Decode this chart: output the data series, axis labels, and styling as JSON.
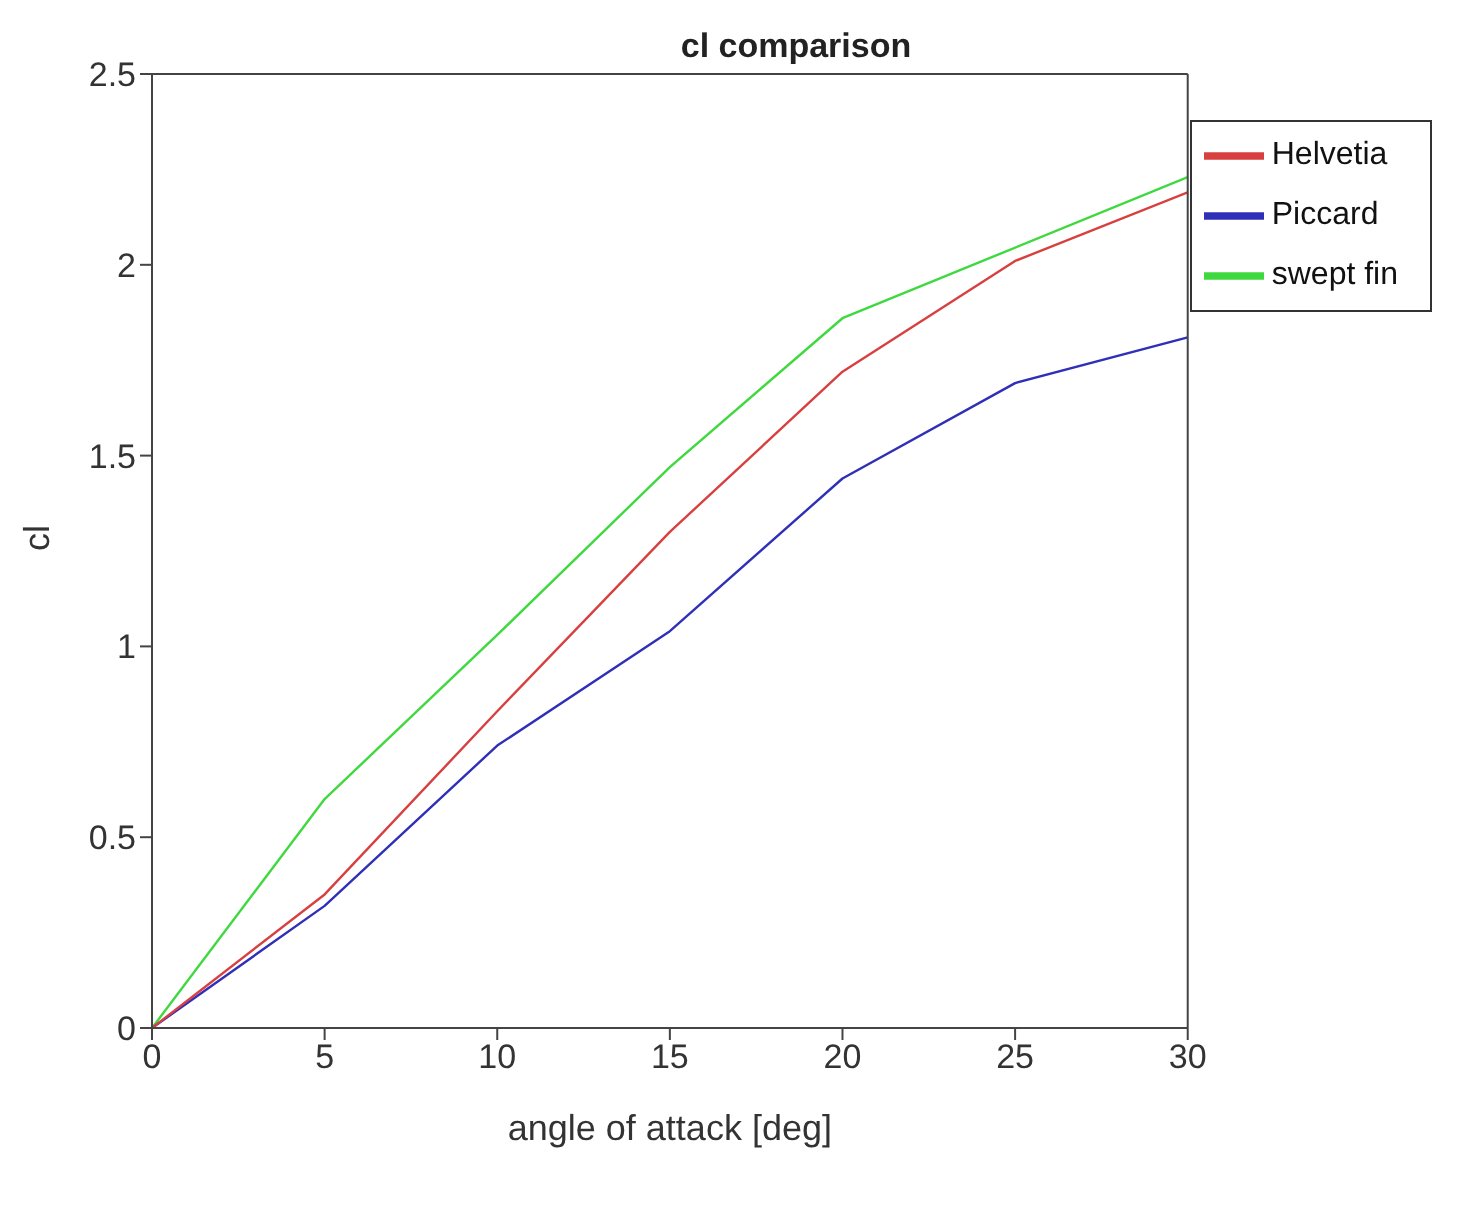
{
  "chart_data": {
    "type": "line",
    "title": "cl comparison",
    "xlabel": "angle of attack [deg]",
    "ylabel": "cl",
    "x": [
      0,
      5,
      10,
      15,
      20,
      25,
      30
    ],
    "series": [
      {
        "name": "swept fin",
        "color": "#3fd93f",
        "values": [
          0,
          0.6,
          1.03,
          1.47,
          1.86,
          null,
          2.23
        ]
      },
      {
        "name": "Piccard",
        "color": "#2f2fb8",
        "values": [
          0,
          0.32,
          0.74,
          1.04,
          1.44,
          1.69,
          1.81
        ]
      },
      {
        "name": "Helvetia",
        "color": "#d84040",
        "values": [
          0,
          0.35,
          0.83,
          1.3,
          1.72,
          2.01,
          2.19
        ]
      }
    ],
    "xlim": [
      0,
      30
    ],
    "xticks": [
      0,
      5,
      10,
      15,
      20,
      25,
      30
    ],
    "ylim": [
      0,
      2.5
    ],
    "yticks": [
      0,
      0.5,
      1,
      1.5,
      2,
      2.5
    ],
    "grid": false,
    "legend": "top right",
    "marker": "none",
    "line_style": "solid"
  }
}
